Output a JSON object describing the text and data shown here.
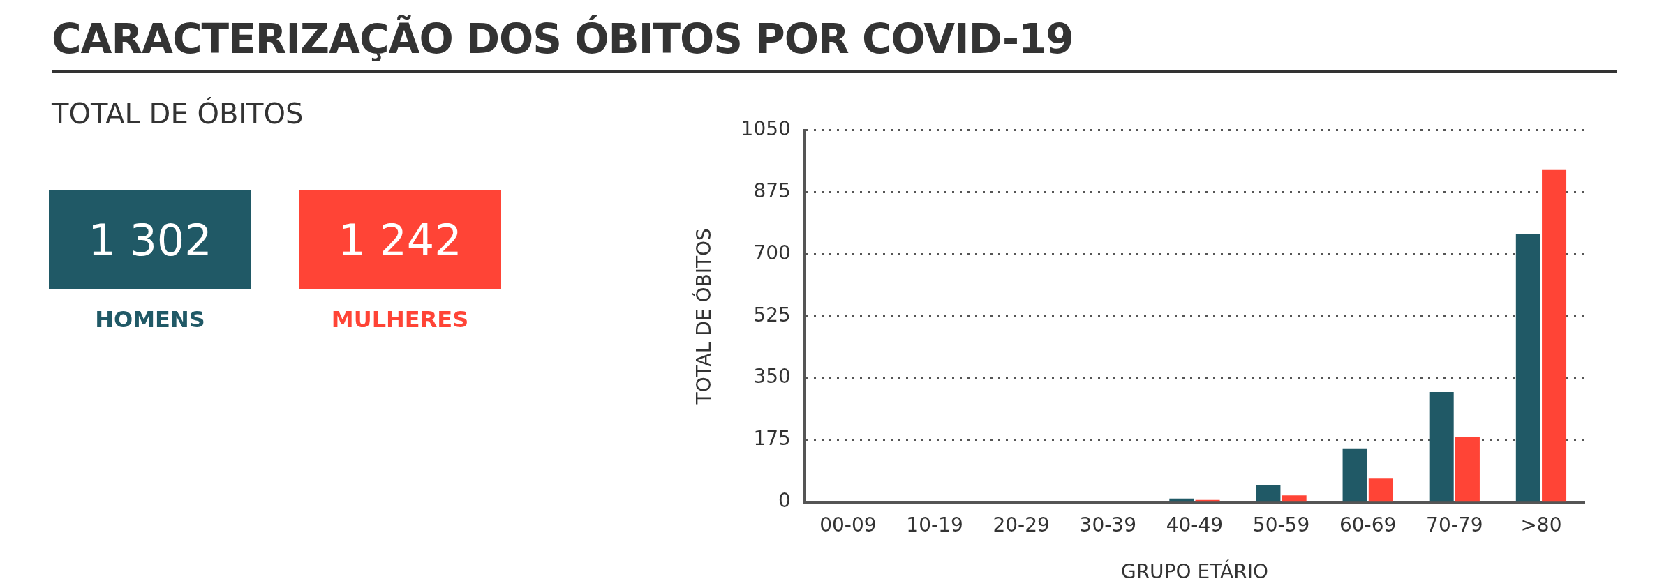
{
  "chart_data": {
    "type": "bar",
    "title": "CARACTERIZAÇÃO DOS ÓBITOS POR COVID-19",
    "subtitle": "TOTAL DE ÓBITOS",
    "xlabel": "GRUPO ETÁRIO",
    "ylabel": "TOTAL DE ÓBITOS",
    "categories": [
      "00-09",
      "10-19",
      "20-29",
      "30-39",
      "40-49",
      "50-59",
      "60-69",
      "70-79",
      ">80"
    ],
    "series": [
      {
        "name": "HOMENS",
        "color": "#205966",
        "values": [
          0,
          0,
          0,
          0,
          10,
          49,
          150,
          311,
          756
        ]
      },
      {
        "name": "MULHERES",
        "color": "#ff4436",
        "values": [
          0,
          0,
          0,
          0,
          6,
          19,
          66,
          185,
          938
        ]
      }
    ],
    "annotations": [
      "1 302",
      "1 242"
    ],
    "ylim": [
      0,
      1050
    ],
    "yticks": [
      0,
      175,
      350,
      525,
      700,
      875,
      1050
    ],
    "grid": "y",
    "legend": "left"
  }
}
